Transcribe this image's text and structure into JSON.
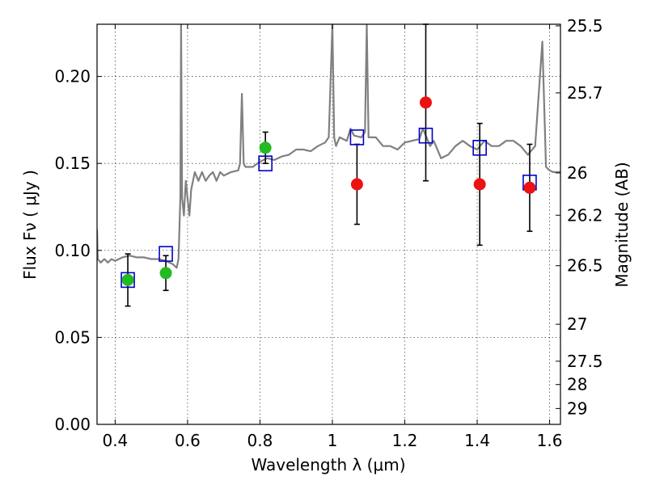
{
  "chart_data": {
    "type": "scatter",
    "xlabel": "Wavelength  λ (μm)",
    "ylabel": "Flux  Fν  ( μJy )",
    "y2label": "Magnitude (AB)",
    "xlim": [
      0.35,
      1.63
    ],
    "ylim": [
      0.0,
      0.23
    ],
    "grid": true,
    "x_ticks": [
      {
        "value": 0.4,
        "label": "0.4"
      },
      {
        "value": 0.6,
        "label": "0.6"
      },
      {
        "value": 0.8,
        "label": "0.8"
      },
      {
        "value": 1.0,
        "label": "1"
      },
      {
        "value": 1.2,
        "label": "1.2"
      },
      {
        "value": 1.4,
        "label": "1.4"
      },
      {
        "value": 1.6,
        "label": "1.6"
      }
    ],
    "y_ticks": [
      {
        "value": 0.0,
        "label": "0.00"
      },
      {
        "value": 0.05,
        "label": "0.05"
      },
      {
        "value": 0.1,
        "label": "0.10"
      },
      {
        "value": 0.15,
        "label": "0.15"
      },
      {
        "value": 0.2,
        "label": "0.20"
      }
    ],
    "mag_ticks": [
      {
        "value": 25.5,
        "label": "25.5"
      },
      {
        "value": 25.7,
        "label": "25.7"
      },
      {
        "value": 26.0,
        "label": "26"
      },
      {
        "value": 26.2,
        "label": "26.2"
      },
      {
        "value": 26.5,
        "label": "26.5"
      },
      {
        "value": 27.0,
        "label": "27"
      },
      {
        "value": 27.5,
        "label": "27.5"
      },
      {
        "value": 28.0,
        "label": "28"
      },
      {
        "value": 29.0,
        "label": "29"
      }
    ],
    "colors": {
      "model": "#808080",
      "green_points": "#22bb22",
      "red_points": "#ee1111",
      "model_photometry": "#0000cc",
      "error_bars": "#000000"
    },
    "model_spectrum": {
      "x": [
        0.35,
        0.352,
        0.36,
        0.37,
        0.38,
        0.39,
        0.4,
        0.42,
        0.44,
        0.46,
        0.48,
        0.5,
        0.52,
        0.54,
        0.56,
        0.57,
        0.575,
        0.58,
        0.582,
        0.585,
        0.59,
        0.595,
        0.6,
        0.605,
        0.61,
        0.62,
        0.63,
        0.64,
        0.65,
        0.66,
        0.67,
        0.68,
        0.69,
        0.7,
        0.72,
        0.74,
        0.745,
        0.75,
        0.755,
        0.76,
        0.78,
        0.8,
        0.82,
        0.84,
        0.86,
        0.88,
        0.9,
        0.92,
        0.94,
        0.96,
        0.98,
        0.99,
        1.0,
        1.005,
        1.01,
        1.02,
        1.04,
        1.05,
        1.06,
        1.08,
        1.09,
        1.095,
        1.1,
        1.12,
        1.14,
        1.16,
        1.18,
        1.2,
        1.22,
        1.24,
        1.25,
        1.26,
        1.27,
        1.28,
        1.3,
        1.32,
        1.34,
        1.36,
        1.38,
        1.4,
        1.42,
        1.44,
        1.46,
        1.48,
        1.5,
        1.52,
        1.54,
        1.56,
        1.58,
        1.59,
        1.6,
        1.61,
        1.62,
        1.63
      ],
      "y": [
        0.112,
        0.095,
        0.093,
        0.095,
        0.093,
        0.095,
        0.094,
        0.096,
        0.097,
        0.096,
        0.096,
        0.095,
        0.095,
        0.094,
        0.092,
        0.09,
        0.095,
        0.13,
        0.23,
        0.13,
        0.12,
        0.14,
        0.13,
        0.12,
        0.135,
        0.145,
        0.14,
        0.145,
        0.14,
        0.143,
        0.145,
        0.14,
        0.145,
        0.143,
        0.145,
        0.146,
        0.15,
        0.19,
        0.15,
        0.148,
        0.148,
        0.151,
        0.153,
        0.152,
        0.154,
        0.155,
        0.158,
        0.158,
        0.157,
        0.16,
        0.162,
        0.165,
        0.23,
        0.165,
        0.16,
        0.165,
        0.163,
        0.17,
        0.166,
        0.165,
        0.168,
        0.23,
        0.165,
        0.165,
        0.16,
        0.16,
        0.158,
        0.162,
        0.163,
        0.164,
        0.17,
        0.165,
        0.16,
        0.163,
        0.153,
        0.155,
        0.16,
        0.163,
        0.16,
        0.158,
        0.163,
        0.16,
        0.16,
        0.163,
        0.163,
        0.16,
        0.155,
        0.16,
        0.22,
        0.148,
        0.146,
        0.145,
        0.145,
        0.145
      ]
    },
    "series": [
      {
        "marker": "circle",
        "color": "green",
        "x": [
          0.435,
          0.54,
          0.815
        ],
        "y": [
          0.083,
          0.087,
          0.159
        ],
        "err": [
          0.015,
          0.01,
          0.009
        ]
      },
      {
        "marker": "circle",
        "color": "red",
        "x": [
          1.068,
          1.258,
          1.407,
          1.545
        ],
        "y": [
          0.138,
          0.185,
          0.138,
          0.136
        ],
        "err": [
          0.023,
          0.045,
          0.035,
          0.025
        ]
      },
      {
        "marker": "open-square",
        "color": "blue",
        "x": [
          0.435,
          0.54,
          0.815,
          1.068,
          1.258,
          1.407,
          1.545
        ],
        "y": [
          0.083,
          0.098,
          0.15,
          0.165,
          0.166,
          0.159,
          0.139
        ]
      }
    ]
  }
}
